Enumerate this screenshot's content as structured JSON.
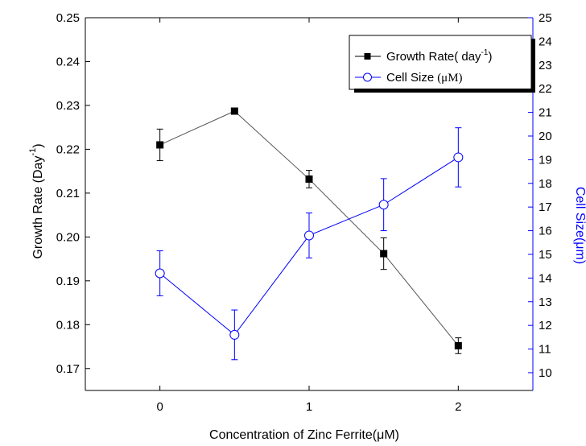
{
  "chart_data": {
    "type": "line",
    "x": [
      0,
      0.5,
      1,
      1.5,
      2
    ],
    "x_ticks": [
      "0",
      "1",
      "2"
    ],
    "x_tick_values": [
      0,
      1,
      2
    ],
    "xlim": [
      -0.5,
      2.5
    ],
    "xlabel": "Concentration of Zinc Ferrite(μM)",
    "y_left": {
      "label_main": "Growth Rate (Day",
      "label_sup": "-1",
      "label_close": ")",
      "lim": [
        0.165,
        0.25
      ],
      "ticks": [
        "0.17",
        "0.18",
        "0.19",
        "0.20",
        "0.21",
        "0.22",
        "0.23",
        "0.24",
        "0.25"
      ],
      "tick_values": [
        0.17,
        0.18,
        0.19,
        0.2,
        0.21,
        0.22,
        0.23,
        0.24,
        0.25
      ],
      "color": "#000000"
    },
    "y_right": {
      "label": "Cell Size(μm)",
      "lim": [
        9.25,
        25
      ],
      "ticks": [
        "10",
        "11",
        "12",
        "13",
        "14",
        "15",
        "16",
        "17",
        "18",
        "19",
        "20",
        "21",
        "22",
        "23",
        "24",
        "25"
      ],
      "tick_values": [
        10,
        11,
        12,
        13,
        14,
        15,
        16,
        17,
        18,
        19,
        20,
        21,
        22,
        23,
        24,
        25
      ],
      "color": "#0000ff"
    },
    "series": [
      {
        "name": "Growth Rate( day",
        "name_sup": "-1",
        "name_close": ")",
        "axis": "left",
        "marker": "filled-square",
        "color": "#000000",
        "line_color": "#555555",
        "values": [
          0.221,
          0.2287,
          0.2132,
          0.1962,
          0.1752
        ],
        "errors": [
          0.0036,
          0.0,
          0.002,
          0.0036,
          0.0018
        ]
      },
      {
        "name": "Cell Size",
        "name_unit": "(μM)",
        "axis": "right",
        "marker": "open-circle",
        "color": "#0000ff",
        "values": [
          14.2,
          11.6,
          15.8,
          17.1,
          19.1
        ],
        "errors": [
          0.95,
          1.05,
          0.95,
          1.1,
          1.25
        ]
      }
    ],
    "legend_position": "top-right",
    "grid": false
  }
}
